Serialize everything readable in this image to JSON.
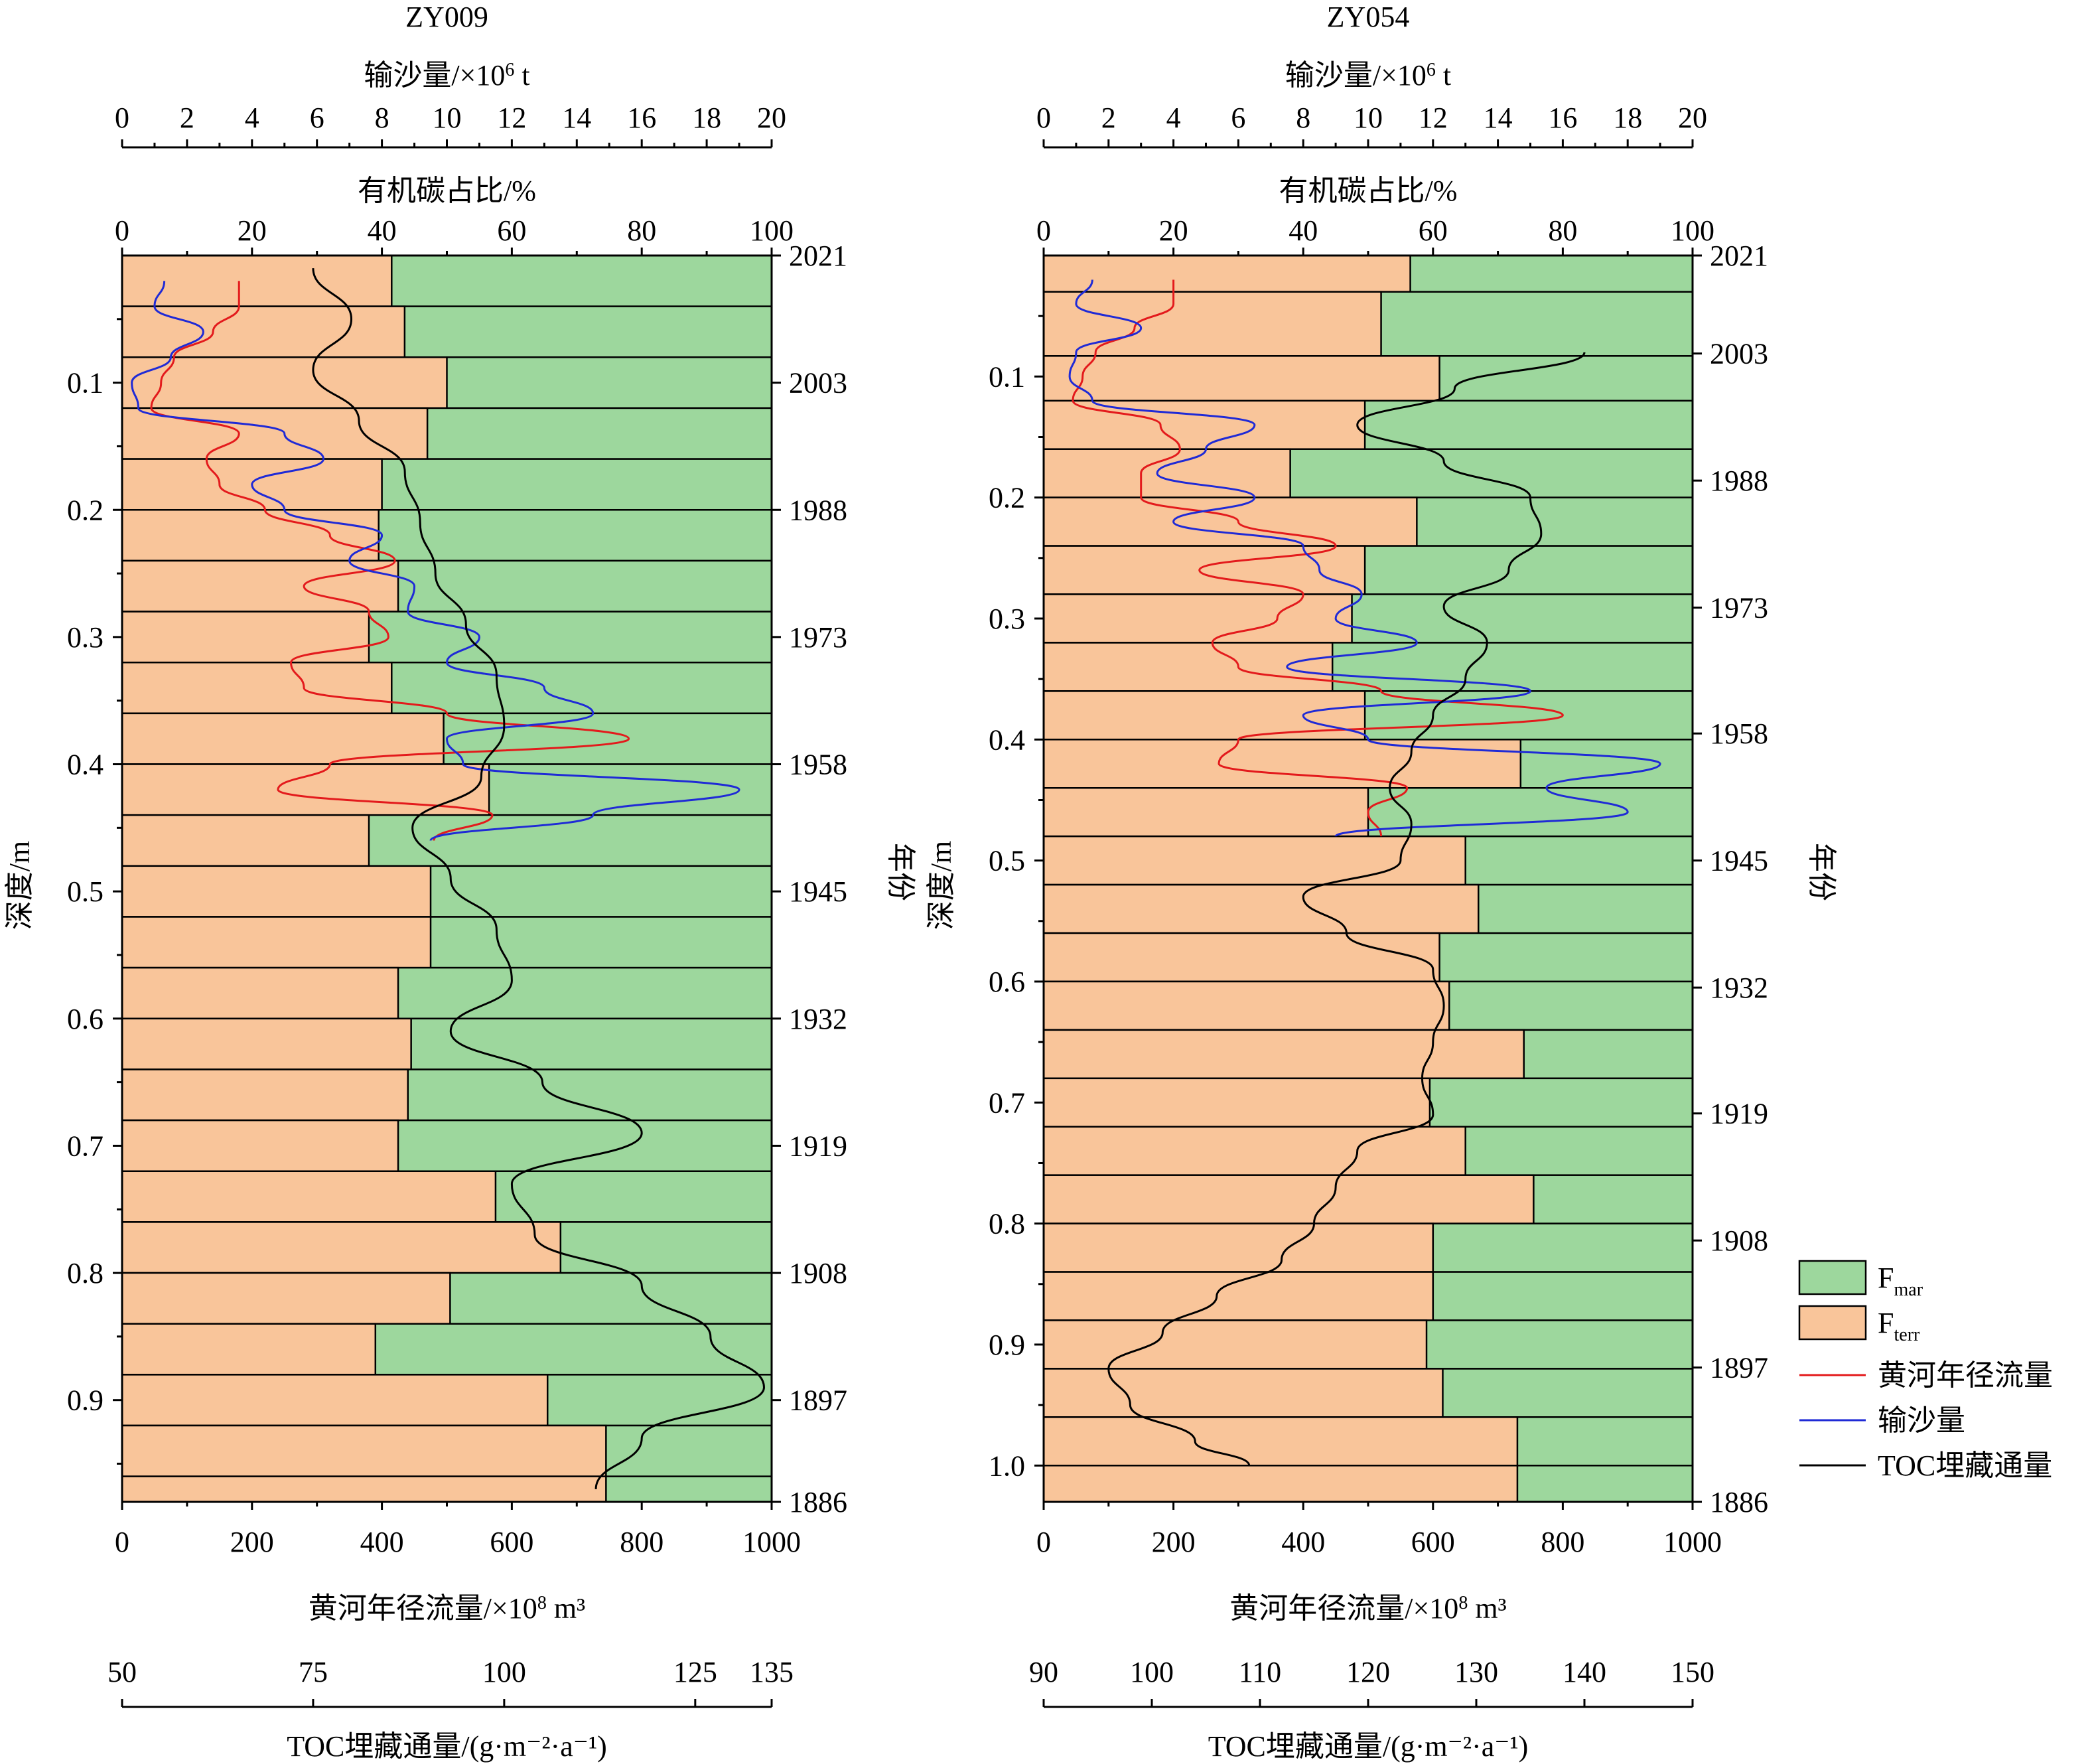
{
  "colors": {
    "marine": "#9dd79d",
    "terrestrial": "#f9c59a",
    "runoff": "#e31a1c",
    "sediment": "#1f2ad6",
    "toc": "#000000",
    "axis": "#000000"
  },
  "legend": {
    "items": [
      {
        "key": "marine",
        "label": "F",
        "sub": "mar",
        "kind": "box"
      },
      {
        "key": "terrestrial",
        "label": "F",
        "sub": "terr",
        "kind": "box"
      },
      {
        "key": "runoff",
        "label": "黄河年径流量",
        "kind": "line"
      },
      {
        "key": "sediment",
        "label": "输沙量",
        "kind": "line"
      },
      {
        "key": "toc",
        "label": "TOC埋藏通量",
        "kind": "line"
      }
    ]
  },
  "chart_data": [
    {
      "type": "bar",
      "title": "ZY009",
      "ylabel": "深度/m",
      "ylabel_right": "年份",
      "depth_range": [
        0.0,
        0.98
      ],
      "depth_ticks": [
        "0.1",
        "0.2",
        "0.3",
        "0.4",
        "0.5",
        "0.6",
        "0.7",
        "0.8",
        "0.9"
      ],
      "year_ticks": [
        {
          "label": "2021",
          "depth": 0.0
        },
        {
          "label": "2003",
          "depth": 0.1
        },
        {
          "label": "1988",
          "depth": 0.2
        },
        {
          "label": "1973",
          "depth": 0.3
        },
        {
          "label": "1958",
          "depth": 0.4
        },
        {
          "label": "1945",
          "depth": 0.5
        },
        {
          "label": "1932",
          "depth": 0.6
        },
        {
          "label": "1919",
          "depth": 0.7
        },
        {
          "label": "1908",
          "depth": 0.8
        },
        {
          "label": "1897",
          "depth": 0.9
        },
        {
          "label": "1886",
          "depth": 0.98
        }
      ],
      "axes": {
        "sediment": {
          "label": "输沙量/×10",
          "sup": "6",
          "unit": " t",
          "range": [
            0,
            20
          ],
          "ticks": [
            "0",
            "2",
            "4",
            "6",
            "8",
            "10",
            "12",
            "14",
            "16",
            "18",
            "20"
          ]
        },
        "organic": {
          "label": "有机碳占比/%",
          "range": [
            0,
            100
          ],
          "ticks": [
            "0",
            "20",
            "40",
            "60",
            "80",
            "100"
          ]
        },
        "runoff": {
          "label": "黄河年径流量/×10",
          "sup": "8",
          "unit": " m³",
          "range": [
            0,
            1000
          ],
          "ticks": [
            "0",
            "200",
            "400",
            "600",
            "800",
            "1000"
          ]
        },
        "toc": {
          "label": "TOC埋藏通量/(g·m⁻²·a⁻¹)",
          "range": [
            50,
            135
          ],
          "ticks": [
            "50",
            "75",
            "100",
            "125",
            "135"
          ]
        }
      },
      "bars": {
        "depth_top": [
          0.0,
          0.04,
          0.08,
          0.12,
          0.16,
          0.2,
          0.24,
          0.28,
          0.32,
          0.36,
          0.4,
          0.44,
          0.48,
          0.52,
          0.56,
          0.6,
          0.64,
          0.68,
          0.72,
          0.76,
          0.8,
          0.84,
          0.88,
          0.92,
          0.96
        ],
        "depth_bottom": [
          0.04,
          0.08,
          0.12,
          0.16,
          0.2,
          0.24,
          0.28,
          0.32,
          0.36,
          0.4,
          0.44,
          0.48,
          0.52,
          0.56,
          0.6,
          0.64,
          0.68,
          0.72,
          0.76,
          0.8,
          0.84,
          0.88,
          0.92,
          0.96,
          0.98
        ],
        "terrestrial_pct": [
          41.5,
          43.5,
          50.0,
          47.0,
          40.0,
          39.5,
          42.5,
          38.0,
          41.5,
          49.5,
          56.5,
          38.0,
          47.5,
          47.5,
          42.5,
          44.5,
          44.0,
          42.5,
          57.5,
          67.5,
          50.5,
          39.0,
          65.5,
          74.5,
          74.5
        ]
      },
      "series": [
        {
          "key": "runoff",
          "name": "黄河年径流量",
          "unit": "×10^8 m³",
          "depth": [
            0.02,
            0.04,
            0.06,
            0.08,
            0.1,
            0.12,
            0.14,
            0.16,
            0.18,
            0.2,
            0.22,
            0.24,
            0.26,
            0.28,
            0.3,
            0.32,
            0.34,
            0.36,
            0.38,
            0.4,
            0.42,
            0.44,
            0.46
          ],
          "values": [
            180,
            180,
            140,
            80,
            60,
            45,
            180,
            130,
            150,
            220,
            320,
            420,
            280,
            380,
            410,
            260,
            280,
            500,
            780,
            320,
            240,
            570,
            480
          ]
        },
        {
          "key": "sediment",
          "name": "输沙量",
          "unit": "×10^6 t",
          "depth": [
            0.02,
            0.04,
            0.06,
            0.08,
            0.1,
            0.12,
            0.14,
            0.16,
            0.18,
            0.2,
            0.22,
            0.24,
            0.26,
            0.28,
            0.3,
            0.32,
            0.34,
            0.36,
            0.38,
            0.4,
            0.42,
            0.44,
            0.46
          ],
          "values": [
            1.3,
            1.0,
            2.5,
            1.5,
            0.3,
            0.5,
            5.0,
            6.2,
            4.0,
            5.0,
            8.0,
            7.0,
            9.0,
            8.8,
            11.0,
            10.0,
            13.0,
            14.5,
            10.0,
            10.5,
            19.0,
            14.5,
            9.5
          ]
        },
        {
          "key": "toc",
          "name": "TOC埋藏通量",
          "unit": "g·m⁻²·a⁻¹",
          "depth": [
            0.01,
            0.05,
            0.09,
            0.13,
            0.17,
            0.21,
            0.25,
            0.29,
            0.33,
            0.37,
            0.41,
            0.45,
            0.49,
            0.53,
            0.57,
            0.61,
            0.65,
            0.69,
            0.73,
            0.77,
            0.81,
            0.85,
            0.89,
            0.93,
            0.97
          ],
          "values": [
            75,
            80,
            75,
            81,
            87,
            89,
            91,
            95,
            99,
            100,
            97,
            88,
            93,
            99,
            101,
            93,
            105,
            118,
            101,
            104,
            118,
            127,
            134,
            118,
            112
          ]
        }
      ]
    },
    {
      "type": "bar",
      "title": "ZY054",
      "ylabel": "深度/m",
      "ylabel_right": "年份",
      "depth_range": [
        0.0,
        1.03
      ],
      "depth_ticks": [
        "0.1",
        "0.2",
        "0.3",
        "0.4",
        "0.5",
        "0.6",
        "0.7",
        "0.8",
        "0.9",
        "1.0"
      ],
      "year_ticks": [
        {
          "label": "2021",
          "depth": 0.0
        },
        {
          "label": "2003",
          "depth": 0.081
        },
        {
          "label": "1988",
          "depth": 0.186
        },
        {
          "label": "1973",
          "depth": 0.291
        },
        {
          "label": "1958",
          "depth": 0.395
        },
        {
          "label": "1945",
          "depth": 0.5
        },
        {
          "label": "1932",
          "depth": 0.605
        },
        {
          "label": "1919",
          "depth": 0.709
        },
        {
          "label": "1908",
          "depth": 0.814
        },
        {
          "label": "1897",
          "depth": 0.919
        },
        {
          "label": "1886",
          "depth": 1.03
        }
      ],
      "axes": {
        "sediment": {
          "label": "输沙量/×10",
          "sup": "6",
          "unit": " t",
          "range": [
            0,
            20
          ],
          "ticks": [
            "0",
            "2",
            "4",
            "6",
            "8",
            "10",
            "12",
            "14",
            "16",
            "18",
            "20"
          ]
        },
        "organic": {
          "label": "有机碳占比/%",
          "range": [
            0,
            100
          ],
          "ticks": [
            "0",
            "20",
            "40",
            "60",
            "80",
            "100"
          ]
        },
        "runoff": {
          "label": "黄河年径流量/×10",
          "sup": "8",
          "unit": " m³",
          "range": [
            0,
            1000
          ],
          "ticks": [
            "0",
            "200",
            "400",
            "600",
            "800",
            "1000"
          ]
        },
        "toc": {
          "label": "TOC埋藏通量/(g·m⁻²·a⁻¹)",
          "range": [
            90,
            150
          ],
          "ticks": [
            "90",
            "100",
            "110",
            "120",
            "130",
            "140",
            "150"
          ]
        }
      },
      "bars": {
        "depth_top": [
          0.0,
          0.03,
          0.083,
          0.12,
          0.16,
          0.2,
          0.24,
          0.28,
          0.32,
          0.36,
          0.4,
          0.44,
          0.48,
          0.52,
          0.56,
          0.6,
          0.64,
          0.68,
          0.72,
          0.76,
          0.8,
          0.84,
          0.88,
          0.92,
          0.96,
          1.0
        ],
        "depth_bottom": [
          0.03,
          0.083,
          0.12,
          0.16,
          0.2,
          0.24,
          0.28,
          0.32,
          0.36,
          0.4,
          0.44,
          0.48,
          0.52,
          0.56,
          0.6,
          0.64,
          0.68,
          0.72,
          0.76,
          0.8,
          0.84,
          0.88,
          0.92,
          0.96,
          1.0,
          1.03
        ],
        "terrestrial_pct": [
          56.5,
          52.0,
          61.0,
          49.5,
          38.0,
          57.5,
          49.5,
          47.5,
          44.5,
          49.5,
          73.5,
          50.0,
          65.0,
          67.0,
          61.0,
          62.5,
          74.0,
          59.5,
          65.0,
          75.5,
          60.0,
          60.0,
          59.0,
          61.5,
          73.0,
          73.0
        ]
      },
      "series": [
        {
          "key": "runoff",
          "name": "黄河年径流量",
          "unit": "×10^8 m³",
          "depth": [
            0.02,
            0.04,
            0.06,
            0.08,
            0.1,
            0.12,
            0.14,
            0.16,
            0.18,
            0.2,
            0.22,
            0.24,
            0.26,
            0.28,
            0.3,
            0.32,
            0.34,
            0.36,
            0.38,
            0.4,
            0.42,
            0.44,
            0.46,
            0.48
          ],
          "values": [
            200,
            200,
            140,
            80,
            60,
            45,
            180,
            210,
            150,
            150,
            300,
            450,
            240,
            400,
            360,
            260,
            300,
            520,
            800,
            300,
            270,
            560,
            500,
            520
          ]
        },
        {
          "key": "sediment",
          "name": "输沙量",
          "unit": "×10^6 t",
          "depth": [
            0.02,
            0.04,
            0.06,
            0.08,
            0.1,
            0.12,
            0.14,
            0.16,
            0.18,
            0.2,
            0.22,
            0.24,
            0.26,
            0.28,
            0.3,
            0.32,
            0.34,
            0.36,
            0.38,
            0.4,
            0.42,
            0.44,
            0.46,
            0.48
          ],
          "values": [
            1.5,
            1.0,
            3.0,
            1.0,
            0.8,
            1.5,
            6.5,
            5.0,
            3.5,
            6.5,
            4.0,
            8.0,
            8.5,
            9.8,
            9.0,
            11.5,
            7.5,
            15.0,
            8.0,
            10.0,
            19.0,
            15.5,
            18.0,
            9.0
          ]
        },
        {
          "key": "toc",
          "name": "TOC埋藏通量",
          "unit": "g·m⁻²·a⁻¹",
          "depth": [
            0.08,
            0.11,
            0.14,
            0.17,
            0.2,
            0.23,
            0.26,
            0.29,
            0.32,
            0.35,
            0.38,
            0.41,
            0.44,
            0.47,
            0.5,
            0.53,
            0.56,
            0.59,
            0.62,
            0.65,
            0.68,
            0.71,
            0.74,
            0.77,
            0.8,
            0.83,
            0.86,
            0.89,
            0.92,
            0.95,
            0.98,
            1.0
          ],
          "values": [
            140,
            128,
            119,
            127,
            135,
            136,
            133,
            127,
            131,
            129,
            126,
            124,
            122,
            124,
            123,
            114,
            118,
            126,
            127,
            126,
            125,
            126,
            119,
            117,
            115,
            112,
            106,
            101,
            96,
            98,
            104,
            109
          ]
        }
      ]
    }
  ]
}
